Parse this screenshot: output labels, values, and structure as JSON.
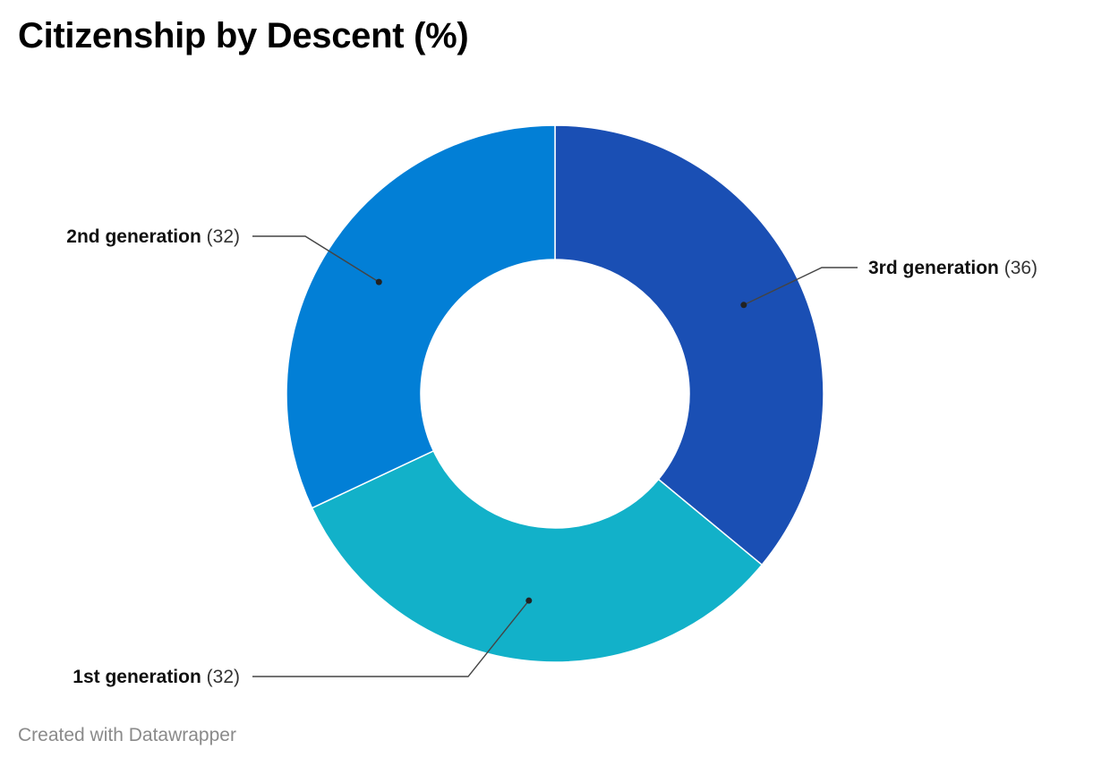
{
  "title": "Citizenship by Descent (%)",
  "credit": "Created with Datawrapper",
  "chart_data": {
    "type": "pie",
    "variant": "donut",
    "title": "Citizenship by Descent (%)",
    "slices": [
      {
        "label": "3rd generation",
        "value": 36,
        "value_text": "(36)",
        "color": "#1a4fb4"
      },
      {
        "label": "1st generation",
        "value": 32,
        "value_text": "(32)",
        "color": "#12b1c9"
      },
      {
        "label": "2nd generation",
        "value": 32,
        "value_text": "(32)",
        "color": "#027fd6"
      }
    ],
    "start_angle": "12 o'clock",
    "direction": "clockwise",
    "legend": "none (direct labels with leader lines)"
  }
}
